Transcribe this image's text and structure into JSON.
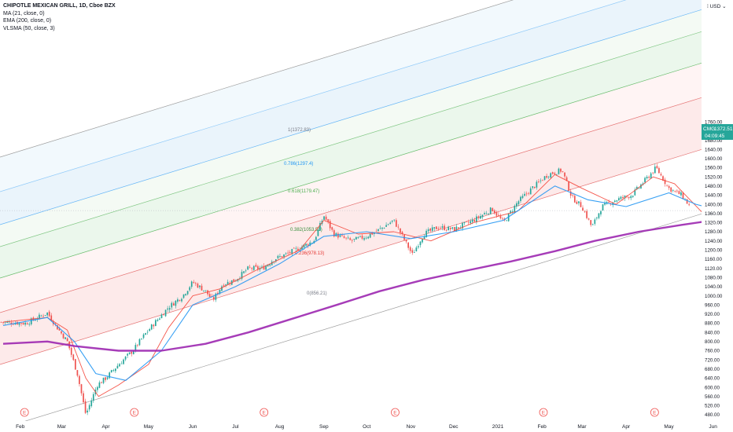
{
  "header": {
    "title": "CHIPOTLE MEXICAN GRILL, 1D, Cboe BZX",
    "indicators": [
      "MA (21, close, 0)",
      "EMA (200, close, 0)",
      "VLSMA (50, close, 3)"
    ]
  },
  "price_scale": {
    "currency": "USD",
    "ticks": [
      "1760.00",
      "1720.00",
      "1680.00",
      "1640.00",
      "1600.00",
      "1560.00",
      "1520.00",
      "1480.00",
      "1440.00",
      "1400.00",
      "1360.00",
      "1320.00",
      "1280.00",
      "1240.00",
      "1200.00",
      "1160.00",
      "1120.00",
      "1080.00",
      "1040.00",
      "1000.00",
      "960.00",
      "920.00",
      "880.00",
      "840.00",
      "800.00",
      "760.00",
      "720.00",
      "680.00",
      "640.00",
      "600.00",
      "560.00",
      "520.00",
      "480.00"
    ],
    "last_price_label": {
      "symbol": "CMG",
      "price": "1372.51",
      "countdown": "04:09:45"
    }
  },
  "time_axis": {
    "labels": [
      "Feb",
      "Mar",
      "Apr",
      "May",
      "Jun",
      "Jul",
      "Aug",
      "Sep",
      "Oct",
      "Nov",
      "Dec",
      "2021",
      "Feb",
      "Mar",
      "Apr",
      "May",
      "Jun"
    ]
  },
  "earnings_markers": [
    "E",
    "E",
    "E",
    "E",
    "E",
    "E"
  ],
  "fib_labels": [
    {
      "text": "1(1372.83)",
      "color": "#787b86"
    },
    {
      "text": "0.786(1297.4)",
      "color": "#2196f3"
    },
    {
      "text": "0.618(1179.47)",
      "color": "#4caf50"
    },
    {
      "text": "0.382(1053.55)",
      "color": "#388e3c"
    },
    {
      "text": "0.236(978.13)",
      "color": "#e53935"
    },
    {
      "text": "0(856.21)",
      "color": "#787b86"
    }
  ],
  "colors": {
    "up": "#26a69a",
    "down": "#ef5350",
    "ma": "#f44336",
    "ema": "#9c27b0",
    "vlsma": "#2196f3",
    "vlsma_low": "#4caf50",
    "accent": "#26a69a"
  },
  "chart_data": {
    "type": "line",
    "title": "CHIPOTLE MEXICAN GRILL, 1D, Cboe BZX",
    "ylim": [
      460,
      1780
    ],
    "grid": false,
    "legend": "top-left",
    "last_price": 1372.51,
    "series": [
      {
        "name": "Close",
        "points": [
          [
            "2020-01-20",
            885
          ],
          [
            "2020-02-05",
            880
          ],
          [
            "2020-02-20",
            925
          ],
          [
            "2020-02-27",
            860
          ],
          [
            "2020-03-05",
            800
          ],
          [
            "2020-03-12",
            660
          ],
          [
            "2020-03-18",
            480
          ],
          [
            "2020-03-26",
            610
          ],
          [
            "2020-04-01",
            640
          ],
          [
            "2020-04-10",
            700
          ],
          [
            "2020-04-20",
            760
          ],
          [
            "2020-04-27",
            820
          ],
          [
            "2020-05-05",
            880
          ],
          [
            "2020-05-15",
            950
          ],
          [
            "2020-05-25",
            1000
          ],
          [
            "2020-06-01",
            1060
          ],
          [
            "2020-06-10",
            1020
          ],
          [
            "2020-06-15",
            980
          ],
          [
            "2020-06-22",
            1050
          ],
          [
            "2020-07-01",
            1070
          ],
          [
            "2020-07-10",
            1120
          ],
          [
            "2020-07-20",
            1120
          ],
          [
            "2020-07-28",
            1160
          ],
          [
            "2020-08-05",
            1180
          ],
          [
            "2020-08-15",
            1210
          ],
          [
            "2020-08-25",
            1240
          ],
          [
            "2020-09-01",
            1350
          ],
          [
            "2020-09-08",
            1270
          ],
          [
            "2020-09-20",
            1240
          ],
          [
            "2020-10-01",
            1260
          ],
          [
            "2020-10-10",
            1290
          ],
          [
            "2020-10-20",
            1330
          ],
          [
            "2020-10-27",
            1250
          ],
          [
            "2020-11-02",
            1180
          ],
          [
            "2020-11-10",
            1270
          ],
          [
            "2020-11-20",
            1300
          ],
          [
            "2020-12-01",
            1290
          ],
          [
            "2020-12-15",
            1330
          ],
          [
            "2020-12-28",
            1380
          ],
          [
            "2021-01-05",
            1320
          ],
          [
            "2021-01-15",
            1410
          ],
          [
            "2021-01-25",
            1470
          ],
          [
            "2021-02-05",
            1530
          ],
          [
            "2021-02-15",
            1550
          ],
          [
            "2021-02-22",
            1430
          ],
          [
            "2021-03-01",
            1390
          ],
          [
            "2021-03-08",
            1300
          ],
          [
            "2021-03-15",
            1390
          ],
          [
            "2021-03-25",
            1420
          ],
          [
            "2021-04-05",
            1440
          ],
          [
            "2021-04-15",
            1510
          ],
          [
            "2021-04-22",
            1560
          ],
          [
            "2021-05-01",
            1470
          ],
          [
            "2021-05-10",
            1440
          ],
          [
            "2021-05-20",
            1350
          ],
          [
            "2021-05-27",
            1340
          ],
          [
            "2021-06-01",
            1372.51
          ]
        ]
      },
      {
        "name": "MA (21, close, 0)",
        "points": [
          [
            "2020-01-20",
            885
          ],
          [
            "2020-02-20",
            905
          ],
          [
            "2020-03-05",
            850
          ],
          [
            "2020-03-18",
            640
          ],
          [
            "2020-03-27",
            560
          ],
          [
            "2020-04-10",
            610
          ],
          [
            "2020-05-01",
            700
          ],
          [
            "2020-05-15",
            860
          ],
          [
            "2020-06-01",
            1000
          ],
          [
            "2020-06-20",
            1030
          ],
          [
            "2020-07-15",
            1110
          ],
          [
            "2020-08-15",
            1200
          ],
          [
            "2020-09-01",
            1330
          ],
          [
            "2020-09-25",
            1270
          ],
          [
            "2020-10-20",
            1280
          ],
          [
            "2020-11-15",
            1240
          ],
          [
            "2020-12-15",
            1320
          ],
          [
            "2021-01-15",
            1370
          ],
          [
            "2021-02-10",
            1530
          ],
          [
            "2021-03-01",
            1470
          ],
          [
            "2021-03-25",
            1400
          ],
          [
            "2021-04-20",
            1520
          ],
          [
            "2021-05-05",
            1490
          ],
          [
            "2021-05-25",
            1360
          ],
          [
            "2021-06-01",
            1355
          ]
        ]
      },
      {
        "name": "EMA (200, close, 0)",
        "points": [
          [
            "2020-01-20",
            790
          ],
          [
            "2020-02-20",
            800
          ],
          [
            "2020-03-10",
            780
          ],
          [
            "2020-04-10",
            760
          ],
          [
            "2020-05-10",
            760
          ],
          [
            "2020-06-10",
            790
          ],
          [
            "2020-07-10",
            840
          ],
          [
            "2020-08-10",
            900
          ],
          [
            "2020-09-10",
            960
          ],
          [
            "2020-10-10",
            1020
          ],
          [
            "2020-11-10",
            1070
          ],
          [
            "2020-12-10",
            1110
          ],
          [
            "2021-01-10",
            1150
          ],
          [
            "2021-02-10",
            1195
          ],
          [
            "2021-03-10",
            1240
          ],
          [
            "2021-04-10",
            1280
          ],
          [
            "2021-05-10",
            1310
          ],
          [
            "2021-06-01",
            1330
          ]
        ]
      },
      {
        "name": "VLSMA (50, close, 3)",
        "points": [
          [
            "2020-01-20",
            870
          ],
          [
            "2020-02-20",
            905
          ],
          [
            "2020-03-10",
            800
          ],
          [
            "2020-03-25",
            660
          ],
          [
            "2020-04-15",
            630
          ],
          [
            "2020-05-10",
            760
          ],
          [
            "2020-06-01",
            960
          ],
          [
            "2020-07-01",
            1040
          ],
          [
            "2020-08-01",
            1140
          ],
          [
            "2020-09-01",
            1260
          ],
          [
            "2020-10-01",
            1280
          ],
          [
            "2020-11-01",
            1250
          ],
          [
            "2020-12-01",
            1280
          ],
          [
            "2021-01-05",
            1330
          ],
          [
            "2021-02-10",
            1480
          ],
          [
            "2021-03-05",
            1420
          ],
          [
            "2021-04-01",
            1390
          ],
          [
            "2021-05-01",
            1450
          ],
          [
            "2021-05-20",
            1400
          ],
          [
            "2021-06-01",
            1380
          ]
        ]
      }
    ]
  }
}
